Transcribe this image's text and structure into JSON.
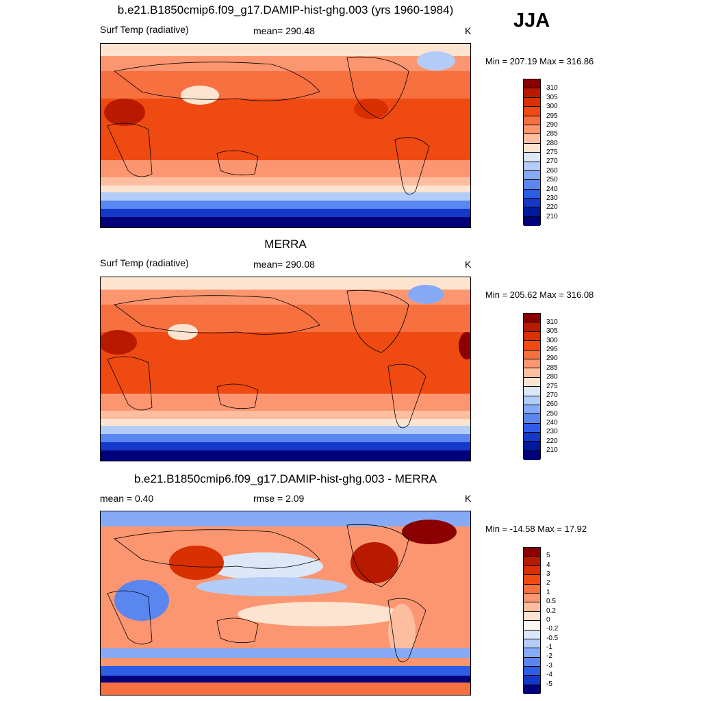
{
  "season": "JJA",
  "panels": [
    {
      "title": "b.e21.B1850cmip6.f09_g17.DAMIP-hist-ghg.003 (yrs 1960-1984)",
      "left_label": "Surf Temp (radiative)",
      "center_label": "mean= 290.48",
      "units": "K",
      "minmax": "Min = 207.19 Max = 316.86"
    },
    {
      "title": "MERRA",
      "left_label": "Surf Temp (radiative)",
      "center_label": "mean= 290.08",
      "units": "K",
      "minmax": "Min = 205.62 Max = 316.08"
    },
    {
      "title": "b.e21.B1850cmip6.f09_g17.DAMIP-hist-ghg.003 - MERRA",
      "left_label": "mean =   0.40",
      "center_label": "rmse =   2.09",
      "units": "K",
      "minmax": "Min = -14.58 Max =  17.92"
    }
  ],
  "abs_colorbar": {
    "labels": [
      "310",
      "305",
      "300",
      "295",
      "290",
      "285",
      "280",
      "275",
      "270",
      "260",
      "250",
      "240",
      "230",
      "220",
      "210"
    ],
    "colors": [
      "#8b0000",
      "#b81a00",
      "#d83000",
      "#ee4a12",
      "#f67040",
      "#fb9670",
      "#fdbea0",
      "#fde4d0",
      "#dce8f8",
      "#b4ccf8",
      "#86aaf6",
      "#5a86f0",
      "#2e5ee6",
      "#1438c8",
      "#001a9e",
      "#00007a"
    ]
  },
  "diff_colorbar": {
    "labels": [
      "5",
      "4",
      "3",
      "2",
      "1",
      "0.5",
      "0.2",
      "0",
      "-0.2",
      "-0.5",
      "-1",
      "-2",
      "-3",
      "-4",
      "-5"
    ],
    "colors": [
      "#8b0000",
      "#b81a00",
      "#d83000",
      "#ee4a12",
      "#f67040",
      "#fb9670",
      "#fdbea0",
      "#fde4d0",
      "#fff8f0",
      "#dce8f8",
      "#b4ccf8",
      "#86aaf6",
      "#5a86f0",
      "#2e5ee6",
      "#1438c8",
      "#00007a"
    ]
  }
}
